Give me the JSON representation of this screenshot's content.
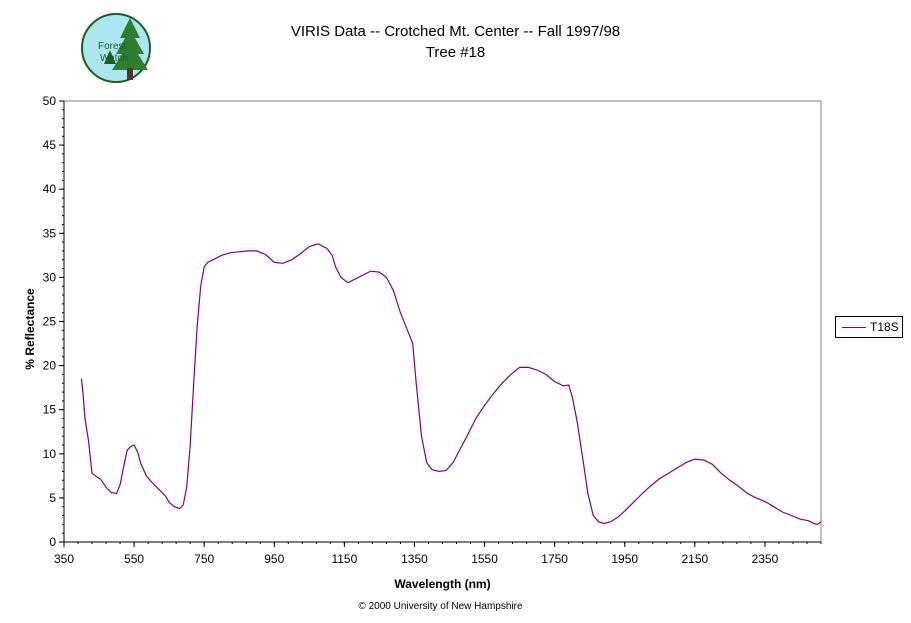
{
  "chart_data": {
    "type": "line",
    "title": "VIRIS Data -- Crotched Mt. Center -- Fall 1997/98",
    "subtitle": "Tree #18",
    "xlabel": "Wavelength (nm)",
    "ylabel": "% Reflectance",
    "xlim": [
      350,
      2510
    ],
    "ylim": [
      0,
      50
    ],
    "x_ticks": [
      350,
      550,
      750,
      950,
      1150,
      1350,
      1550,
      1750,
      1950,
      2150,
      2350
    ],
    "y_ticks": [
      0,
      5,
      10,
      15,
      20,
      25,
      30,
      35,
      40,
      45,
      50
    ],
    "grid": false,
    "legend_position": "right",
    "series": [
      {
        "name": "T18S",
        "color": "#800080",
        "points": [
          [
            400,
            18.5
          ],
          [
            405,
            16.5
          ],
          [
            410,
            14.0
          ],
          [
            420,
            11.5
          ],
          [
            430,
            7.8
          ],
          [
            440,
            7.5
          ],
          [
            455,
            7.1
          ],
          [
            470,
            6.2
          ],
          [
            485,
            5.6
          ],
          [
            500,
            5.5
          ],
          [
            510,
            6.5
          ],
          [
            520,
            8.5
          ],
          [
            530,
            10.4
          ],
          [
            540,
            10.8
          ],
          [
            550,
            11.0
          ],
          [
            560,
            10.2
          ],
          [
            570,
            8.8
          ],
          [
            585,
            7.5
          ],
          [
            600,
            6.8
          ],
          [
            620,
            6.0
          ],
          [
            640,
            5.2
          ],
          [
            650,
            4.5
          ],
          [
            665,
            4.0
          ],
          [
            680,
            3.8
          ],
          [
            690,
            4.2
          ],
          [
            700,
            6.2
          ],
          [
            710,
            11.0
          ],
          [
            720,
            18.0
          ],
          [
            730,
            24.5
          ],
          [
            740,
            29.0
          ],
          [
            750,
            31.2
          ],
          [
            760,
            31.7
          ],
          [
            775,
            32.0
          ],
          [
            800,
            32.5
          ],
          [
            825,
            32.8
          ],
          [
            850,
            32.9
          ],
          [
            875,
            33.0
          ],
          [
            900,
            33.0
          ],
          [
            925,
            32.6
          ],
          [
            950,
            31.7
          ],
          [
            975,
            31.6
          ],
          [
            1000,
            32.0
          ],
          [
            1025,
            32.7
          ],
          [
            1050,
            33.5
          ],
          [
            1075,
            33.8
          ],
          [
            1100,
            33.3
          ],
          [
            1115,
            32.5
          ],
          [
            1125,
            31.2
          ],
          [
            1140,
            30.0
          ],
          [
            1160,
            29.4
          ],
          [
            1180,
            29.8
          ],
          [
            1200,
            30.2
          ],
          [
            1225,
            30.7
          ],
          [
            1250,
            30.6
          ],
          [
            1270,
            30.0
          ],
          [
            1290,
            28.5
          ],
          [
            1310,
            26.0
          ],
          [
            1330,
            24.0
          ],
          [
            1345,
            22.5
          ],
          [
            1355,
            18.0
          ],
          [
            1370,
            12.0
          ],
          [
            1385,
            9.0
          ],
          [
            1400,
            8.2
          ],
          [
            1420,
            8.0
          ],
          [
            1440,
            8.1
          ],
          [
            1460,
            9.0
          ],
          [
            1480,
            10.5
          ],
          [
            1500,
            12.0
          ],
          [
            1525,
            14.0
          ],
          [
            1550,
            15.5
          ],
          [
            1575,
            16.8
          ],
          [
            1600,
            18.0
          ],
          [
            1625,
            19.0
          ],
          [
            1650,
            19.8
          ],
          [
            1675,
            19.8
          ],
          [
            1700,
            19.5
          ],
          [
            1725,
            19.0
          ],
          [
            1750,
            18.2
          ],
          [
            1775,
            17.7
          ],
          [
            1790,
            17.8
          ],
          [
            1800,
            16.5
          ],
          [
            1815,
            13.5
          ],
          [
            1830,
            9.5
          ],
          [
            1845,
            5.5
          ],
          [
            1860,
            3.0
          ],
          [
            1875,
            2.3
          ],
          [
            1890,
            2.1
          ],
          [
            1910,
            2.3
          ],
          [
            1930,
            2.8
          ],
          [
            1950,
            3.5
          ],
          [
            1975,
            4.5
          ],
          [
            2000,
            5.5
          ],
          [
            2025,
            6.4
          ],
          [
            2050,
            7.2
          ],
          [
            2075,
            7.8
          ],
          [
            2100,
            8.4
          ],
          [
            2125,
            9.0
          ],
          [
            2150,
            9.4
          ],
          [
            2175,
            9.3
          ],
          [
            2200,
            8.8
          ],
          [
            2225,
            7.8
          ],
          [
            2250,
            7.0
          ],
          [
            2275,
            6.3
          ],
          [
            2300,
            5.5
          ],
          [
            2325,
            5.0
          ],
          [
            2350,
            4.6
          ],
          [
            2375,
            4.0
          ],
          [
            2400,
            3.4
          ],
          [
            2425,
            3.0
          ],
          [
            2450,
            2.6
          ],
          [
            2475,
            2.4
          ],
          [
            2490,
            2.1
          ],
          [
            2500,
            2.0
          ],
          [
            2510,
            2.3
          ]
        ]
      }
    ]
  },
  "footer": {
    "copyright": "© 2000 University of New Hampshire"
  },
  "logo": {
    "text_line1": "Forest",
    "text_line2": "Watch",
    "background_color": "#aee6ef",
    "tree_color": "#2e7d32"
  }
}
